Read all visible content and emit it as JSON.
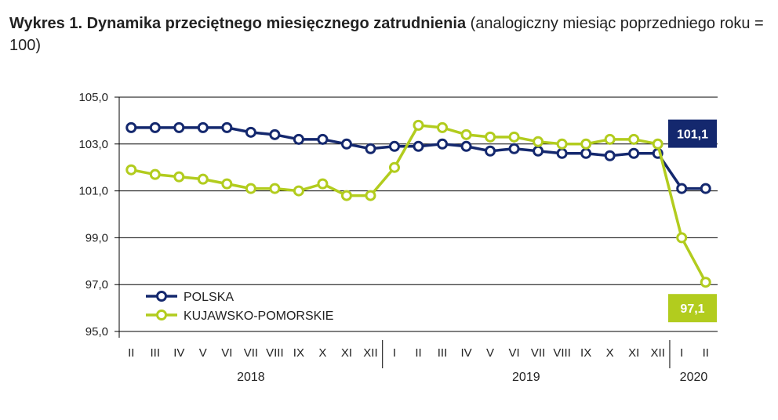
{
  "title": {
    "bold": "Wykres 1. Dynamika przeciętnego miesięcznego zatrudnienia",
    "normal": " (analogiczny miesiąc poprzedniego roku = 100)"
  },
  "colors": {
    "polska": "#14286e",
    "kujawsko": "#b2cc1e",
    "axis": "#000000",
    "grid": "#000000"
  },
  "chart_data": {
    "type": "line",
    "ylim": [
      95.0,
      105.0
    ],
    "yticks": [
      "95,0",
      "97,0",
      "99,0",
      "101,0",
      "103,0",
      "105,0"
    ],
    "categories": [
      "II",
      "III",
      "IV",
      "V",
      "VI",
      "VII",
      "VIII",
      "IX",
      "X",
      "XI",
      "XII",
      "I",
      "II",
      "III",
      "IV",
      "V",
      "VI",
      "VII",
      "VIII",
      "IX",
      "X",
      "XI",
      "XII",
      "I",
      "II"
    ],
    "years": [
      {
        "label": "2018",
        "start": 0,
        "end": 10
      },
      {
        "label": "2019",
        "start": 11,
        "end": 22
      },
      {
        "label": "2020",
        "start": 23,
        "end": 24
      }
    ],
    "series": [
      {
        "name": "POLSKA",
        "color": "#14286e",
        "values": [
          103.7,
          103.7,
          103.7,
          103.7,
          103.7,
          103.5,
          103.4,
          103.2,
          103.2,
          103.0,
          102.8,
          102.9,
          102.9,
          103.0,
          102.9,
          102.7,
          102.8,
          102.7,
          102.6,
          102.6,
          102.5,
          102.6,
          102.6,
          101.1,
          101.1
        ]
      },
      {
        "name": "KUJAWSKO-POMORSKIE",
        "color": "#b2cc1e",
        "values": [
          101.9,
          101.7,
          101.6,
          101.5,
          101.3,
          101.1,
          101.1,
          101.0,
          101.3,
          100.8,
          100.8,
          102.0,
          103.8,
          103.7,
          103.4,
          103.3,
          103.3,
          103.1,
          103.0,
          103.0,
          103.2,
          103.2,
          103.0,
          99.0,
          97.1
        ]
      }
    ],
    "callouts": [
      {
        "series": "POLSKA",
        "label": "101,1"
      },
      {
        "series": "KUJAWSKO-POMORSKIE",
        "label": "97,1"
      }
    ],
    "legend_position": "bottom-left",
    "grid": true
  }
}
